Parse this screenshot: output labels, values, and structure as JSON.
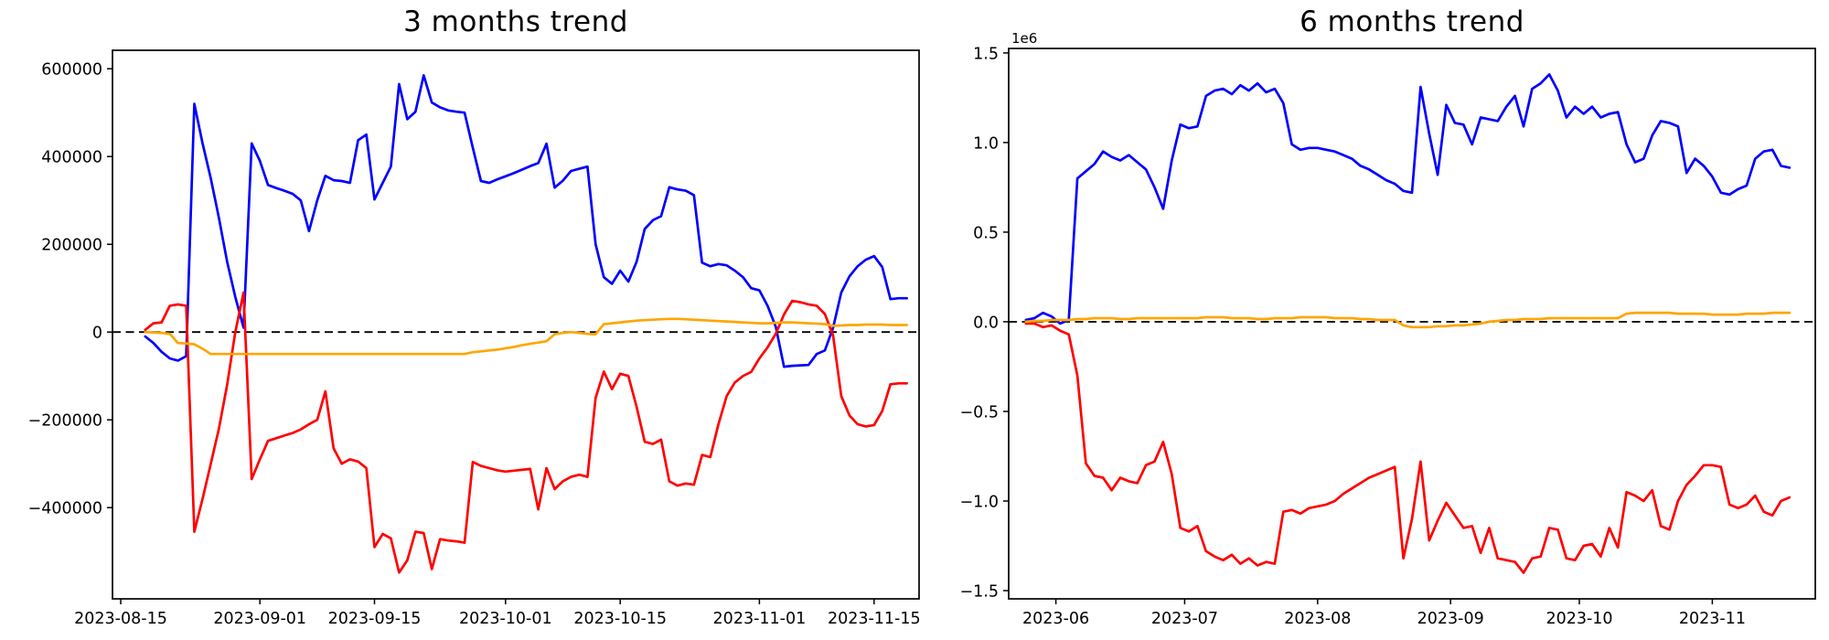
{
  "colors": {
    "positive_line": "#0000ff",
    "negative_line": "#ff0000",
    "net_line": "#ffa500",
    "axis": "#000000",
    "zero_line": "#000000",
    "background": "#ffffff"
  },
  "chart_data": [
    {
      "type": "line",
      "title": "3 months trend",
      "grid": false,
      "legend": "none",
      "zero_line": {
        "style": "dashed",
        "color": "#000000"
      },
      "x_axis": {
        "epoch": "2023-08-14",
        "domain": [
          0,
          98.5
        ],
        "ticks": [
          {
            "label": "2023-08-15",
            "day": 1
          },
          {
            "label": "2023-09-01",
            "day": 18
          },
          {
            "label": "2023-09-15",
            "day": 32
          },
          {
            "label": "2023-10-01",
            "day": 48
          },
          {
            "label": "2023-10-15",
            "day": 62
          },
          {
            "label": "2023-11-01",
            "day": 79
          },
          {
            "label": "2023-11-15",
            "day": 93
          }
        ]
      },
      "y_axis": {
        "domain": [
          -608000,
          642000
        ],
        "offset_label": "",
        "ticks": [
          {
            "label": "600000",
            "value": 600000
          },
          {
            "label": "400000",
            "value": 400000
          },
          {
            "label": "200000",
            "value": 200000
          },
          {
            "label": "0",
            "value": 0
          },
          {
            "label": "−200000",
            "value": -200000
          },
          {
            "label": "−400000",
            "value": -400000
          }
        ]
      },
      "series": [
        {
          "name": "positive",
          "color": "#0000ff",
          "start_day": 4,
          "step": 1,
          "values": [
            -10000,
            -25000,
            -45000,
            -60000,
            -65000,
            -55000,
            520000,
            430000,
            350000,
            260000,
            160000,
            80000,
            10000,
            430000,
            390000,
            335000,
            328000,
            322000,
            315000,
            300000,
            230000,
            300000,
            356000,
            346000,
            344000,
            340000,
            437000,
            450000,
            302000,
            340000,
            377000,
            565000,
            485000,
            502000,
            585000,
            523000,
            512000,
            505000,
            502000,
            500000,
            420000,
            344000,
            340000,
            348000,
            355000,
            362000,
            370000,
            378000,
            385000,
            429000,
            329000,
            345000,
            367000,
            372000,
            377000,
            200000,
            125000,
            110000,
            140000,
            115000,
            160000,
            235000,
            255000,
            264000,
            330000,
            325000,
            322000,
            312000,
            158000,
            150000,
            155000,
            152000,
            140000,
            125000,
            100000,
            95000,
            60000,
            12000,
            -79000,
            -77000,
            -76000,
            -75000,
            -50000,
            -42000,
            10000,
            90000,
            127000,
            150000,
            165000,
            173000,
            148000,
            75000,
            77000,
            77000
          ]
        },
        {
          "name": "negative",
          "color": "#ff0000",
          "start_day": 4,
          "step": 1,
          "values": [
            5000,
            20000,
            22000,
            60000,
            63000,
            60000,
            -455000,
            -380000,
            -300000,
            -220000,
            -120000,
            0,
            90000,
            -335000,
            -290000,
            -248000,
            -242000,
            -236000,
            -230000,
            -222000,
            -210000,
            -200000,
            -135000,
            -265000,
            -300000,
            -290000,
            -295000,
            -310000,
            -490000,
            -460000,
            -470000,
            -548000,
            -520000,
            -455000,
            -458000,
            -540000,
            -472000,
            -475000,
            -477000,
            -480000,
            -296000,
            -305000,
            -310000,
            -315000,
            -318000,
            -316000,
            -314000,
            -312000,
            -404000,
            -310000,
            -358000,
            -340000,
            -330000,
            -325000,
            -330000,
            -150000,
            -90000,
            -130000,
            -95000,
            -100000,
            -170000,
            -250000,
            -255000,
            -245000,
            -340000,
            -350000,
            -345000,
            -348000,
            -280000,
            -285000,
            -210000,
            -146000,
            -115000,
            -100000,
            -91000,
            -60000,
            -35000,
            -4000,
            40000,
            71000,
            68000,
            63000,
            60000,
            41000,
            -8000,
            -146000,
            -190000,
            -210000,
            -215000,
            -212000,
            -180000,
            -119000,
            -117000,
            -117000
          ]
        },
        {
          "name": "net",
          "color": "#ffa500",
          "start_day": 4,
          "step": 1,
          "values": [
            0,
            -1000,
            -2000,
            -4000,
            -25000,
            -26000,
            -28000,
            -38000,
            -50000,
            -50000,
            -50000,
            -50000,
            -50000,
            -50000,
            -50000,
            -50000,
            -50000,
            -50000,
            -50000,
            -50000,
            -50000,
            -50000,
            -50000,
            -50000,
            -50000,
            -50000,
            -50000,
            -50000,
            -50000,
            -50000,
            -50000,
            -50000,
            -50000,
            -50000,
            -50000,
            -50000,
            -50000,
            -50000,
            -50000,
            -50000,
            -46000,
            -44000,
            -42000,
            -40000,
            -37000,
            -34000,
            -30000,
            -27000,
            -24000,
            -21000,
            -5000,
            -2000,
            0,
            -2000,
            -4000,
            -5000,
            18000,
            20000,
            22000,
            24000,
            26000,
            27000,
            28000,
            29000,
            30000,
            30000,
            29000,
            28000,
            27000,
            26000,
            25000,
            24000,
            23000,
            22000,
            21000,
            20000,
            20000,
            21000,
            22000,
            22000,
            21000,
            20000,
            19000,
            18000,
            14000,
            15000,
            16000,
            16000,
            17000,
            17000,
            17000,
            16000,
            16000,
            16000
          ]
        }
      ]
    },
    {
      "type": "line",
      "title": "6 months trend",
      "grid": false,
      "legend": "none",
      "zero_line": {
        "style": "dashed",
        "color": "#000000"
      },
      "x_axis": {
        "epoch": "2023-05-21",
        "domain": [
          0,
          188
        ],
        "ticks": [
          {
            "label": "2023-06",
            "day": 11
          },
          {
            "label": "2023-07",
            "day": 41
          },
          {
            "label": "2023-08",
            "day": 72
          },
          {
            "label": "2023-09",
            "day": 103
          },
          {
            "label": "2023-10",
            "day": 133
          },
          {
            "label": "2023-11",
            "day": 164
          }
        ]
      },
      "y_axis": {
        "domain": [
          -1546000,
          1525000
        ],
        "offset_label": "1e6",
        "ticks": [
          {
            "label": "1.5",
            "value": 1500000
          },
          {
            "label": "1.0",
            "value": 1000000
          },
          {
            "label": "0.5",
            "value": 500000
          },
          {
            "label": "0.0",
            "value": 0
          },
          {
            "label": "−0.5",
            "value": -500000
          },
          {
            "label": "−1.0",
            "value": -1000000
          },
          {
            "label": "−1.5",
            "value": -1500000
          }
        ]
      },
      "series": [
        {
          "name": "positive",
          "color": "#0000ff",
          "start_day": 4,
          "step": 2,
          "values": [
            10000,
            20000,
            50000,
            30000,
            -10000,
            10000,
            800000,
            840000,
            880000,
            950000,
            920000,
            900000,
            930000,
            890000,
            850000,
            750000,
            630000,
            900000,
            1100000,
            1080000,
            1090000,
            1260000,
            1290000,
            1300000,
            1270000,
            1320000,
            1290000,
            1330000,
            1280000,
            1300000,
            1220000,
            990000,
            960000,
            970000,
            970000,
            960000,
            950000,
            930000,
            910000,
            870000,
            850000,
            820000,
            790000,
            770000,
            730000,
            720000,
            1310000,
            1050000,
            820000,
            1210000,
            1110000,
            1100000,
            990000,
            1140000,
            1130000,
            1120000,
            1200000,
            1260000,
            1090000,
            1300000,
            1330000,
            1380000,
            1290000,
            1140000,
            1200000,
            1160000,
            1200000,
            1140000,
            1160000,
            1170000,
            990000,
            890000,
            910000,
            1040000,
            1120000,
            1110000,
            1090000,
            830000,
            910000,
            870000,
            810000,
            720000,
            710000,
            740000,
            760000,
            910000,
            950000,
            960000,
            870000,
            860000
          ]
        },
        {
          "name": "negative",
          "color": "#ff0000",
          "start_day": 4,
          "step": 2,
          "values": [
            -10000,
            -10000,
            -30000,
            -20000,
            -50000,
            -70000,
            -300000,
            -790000,
            -860000,
            -870000,
            -940000,
            -870000,
            -890000,
            -900000,
            -800000,
            -780000,
            -670000,
            -850000,
            -1150000,
            -1170000,
            -1140000,
            -1280000,
            -1310000,
            -1330000,
            -1300000,
            -1350000,
            -1320000,
            -1360000,
            -1340000,
            -1350000,
            -1060000,
            -1050000,
            -1070000,
            -1040000,
            -1030000,
            -1020000,
            -1000000,
            -960000,
            -930000,
            -900000,
            -870000,
            -850000,
            -830000,
            -810000,
            -1320000,
            -1100000,
            -780000,
            -1220000,
            -1110000,
            -1010000,
            -1080000,
            -1150000,
            -1140000,
            -1290000,
            -1150000,
            -1320000,
            -1330000,
            -1340000,
            -1400000,
            -1320000,
            -1310000,
            -1150000,
            -1160000,
            -1320000,
            -1330000,
            -1250000,
            -1240000,
            -1310000,
            -1150000,
            -1260000,
            -950000,
            -970000,
            -1000000,
            -940000,
            -1140000,
            -1160000,
            -1000000,
            -910000,
            -860000,
            -800000,
            -800000,
            -810000,
            -1020000,
            -1040000,
            -1020000,
            -970000,
            -1060000,
            -1080000,
            -1000000,
            -980000
          ]
        },
        {
          "name": "net",
          "color": "#ffa500",
          "start_day": 4,
          "step": 2,
          "values": [
            0,
            5000,
            5000,
            10000,
            10000,
            10000,
            15000,
            15000,
            20000,
            20000,
            20000,
            15000,
            15000,
            20000,
            20000,
            20000,
            20000,
            20000,
            20000,
            20000,
            20000,
            25000,
            25000,
            25000,
            20000,
            20000,
            20000,
            15000,
            15000,
            20000,
            20000,
            20000,
            25000,
            25000,
            25000,
            25000,
            20000,
            20000,
            20000,
            15000,
            15000,
            10000,
            10000,
            10000,
            -20000,
            -30000,
            -30000,
            -30000,
            -25000,
            -25000,
            -20000,
            -20000,
            -15000,
            -10000,
            0,
            5000,
            10000,
            10000,
            15000,
            15000,
            15000,
            20000,
            20000,
            20000,
            20000,
            20000,
            20000,
            20000,
            20000,
            20000,
            45000,
            50000,
            50000,
            50000,
            50000,
            50000,
            45000,
            45000,
            45000,
            45000,
            40000,
            40000,
            40000,
            40000,
            45000,
            45000,
            45000,
            50000,
            50000,
            50000
          ]
        }
      ]
    }
  ]
}
